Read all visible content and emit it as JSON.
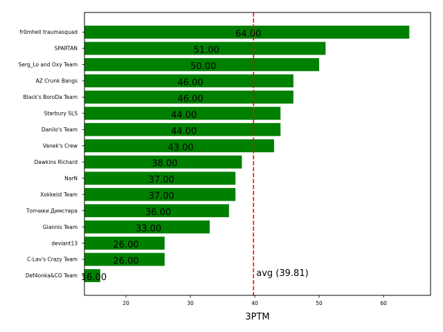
{
  "chart_data": {
    "type": "bar",
    "orientation": "horizontal",
    "title": "",
    "xlabel": "3PTM",
    "ylabel": "",
    "categories": [
      "fr0mhell traumasquad",
      "SPARTAN",
      "Serg_Lo and Oxy Team",
      "AZ Crunk Bangs",
      "Black's BoroDa Team",
      "Starbury SLS",
      "Danilo's Team",
      "Vanek's Crew",
      "Dawkins Richard",
      "NarN",
      "Xokkeist Team",
      "Топчики Димстера",
      "Giannis Team",
      "deviant13",
      "C-Lav's Crazy Team",
      "Def4onka&CO Team"
    ],
    "values": [
      64,
      51,
      50,
      46,
      46,
      44,
      44,
      43,
      38,
      37,
      37,
      36,
      33,
      26,
      26,
      16
    ],
    "value_labels": [
      "64.00",
      "51.00",
      "50.00",
      "46.00",
      "46.00",
      "44.00",
      "44.00",
      "43.00",
      "38.00",
      "37.00",
      "37.00",
      "36.00",
      "33.00",
      "26.00",
      "26.00",
      "16.00"
    ],
    "xlim": [
      13.55,
      67.3
    ],
    "xticks": [
      20,
      30,
      40,
      50,
      60
    ],
    "xtick_labels": [
      "20",
      "30",
      "40",
      "50",
      "60"
    ],
    "grid": false,
    "legend": null,
    "bar_color": "#008000",
    "reference_line": {
      "value": 39.81,
      "label": "avg (39.81)",
      "color": "#ff0000",
      "style": "dashed"
    }
  }
}
